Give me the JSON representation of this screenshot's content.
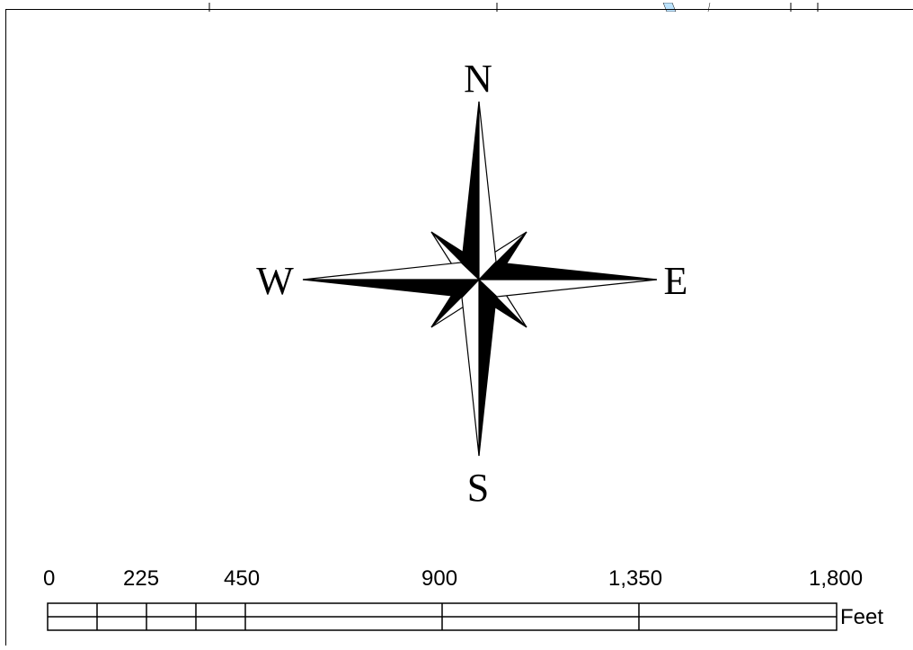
{
  "compass": {
    "north": "N",
    "south": "S",
    "east": "E",
    "west": "W"
  },
  "scale_bar": {
    "labels": [
      "0",
      "225",
      "450",
      "900",
      "1,350",
      "1,800"
    ],
    "unit": "Feet"
  }
}
